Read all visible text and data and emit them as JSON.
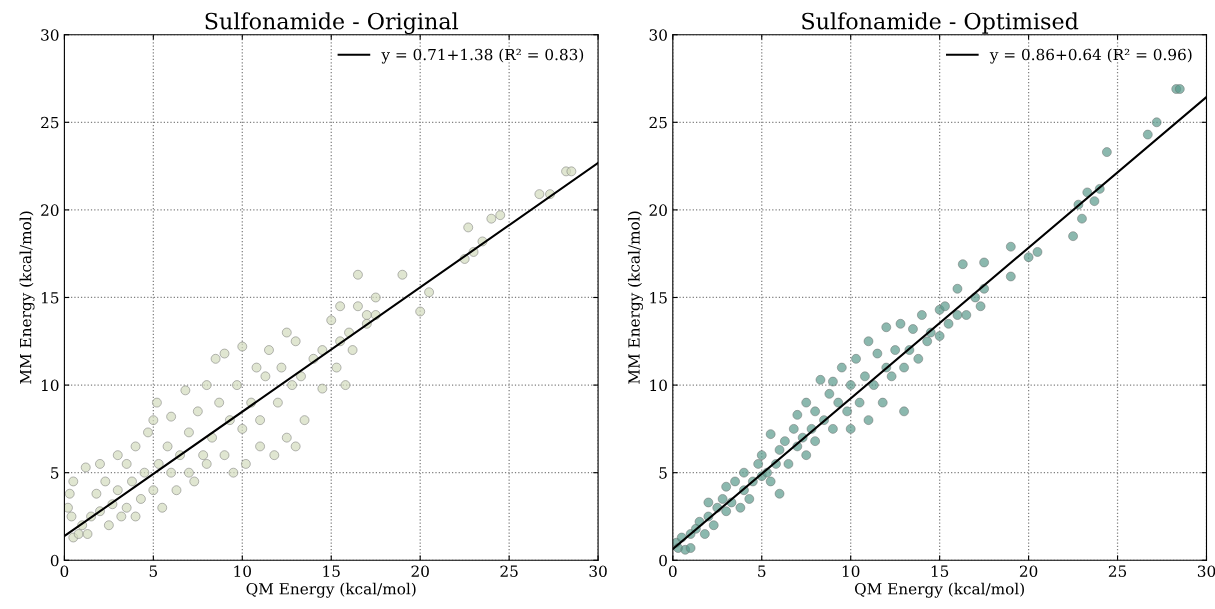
{
  "chart_data": [
    {
      "type": "scatter",
      "title": "Sulfonamide - Original",
      "xlabel": "QM Energy (kcal/mol)",
      "ylabel": "MM Energy (kcal/mol)",
      "xlim": [
        0,
        30
      ],
      "ylim": [
        0,
        30
      ],
      "xticks": [
        0,
        5,
        10,
        15,
        20,
        25,
        30
      ],
      "yticks": [
        0,
        5,
        10,
        15,
        20,
        25,
        30
      ],
      "grid": true,
      "legend": "top right",
      "series": [
        {
          "color": "#d3dbbd",
          "marker": "circle",
          "x": [
            0.2,
            0.3,
            0.5,
            0.4,
            0.5,
            0.8,
            1,
            1.2,
            1.5,
            1.3,
            1.8,
            2,
            2,
            2.3,
            2.5,
            2.7,
            3,
            3,
            3.2,
            3.5,
            3.5,
            3.8,
            4,
            4,
            4.3,
            4.5,
            4.7,
            5,
            5,
            5.2,
            5.3,
            5.5,
            5.8,
            6,
            6,
            6.3,
            6.5,
            6.8,
            7,
            7,
            7.3,
            7.5,
            7.8,
            8,
            8,
            8.3,
            8.5,
            8.7,
            9,
            9,
            9.3,
            9.5,
            9.7,
            10,
            10,
            10.2,
            10.5,
            10.8,
            11,
            11,
            11.3,
            11.5,
            11.8,
            12,
            12.2,
            12.5,
            12.5,
            12.8,
            13,
            13,
            13.3,
            13.5,
            14,
            14.5,
            14.5,
            15,
            15.3,
            15.5,
            15.5,
            15.8,
            16,
            16.2,
            16.5,
            16.5,
            17,
            17,
            17.5,
            17.5,
            19,
            20,
            20.5,
            22.5,
            22.7,
            23,
            23.5,
            24,
            24.5,
            26.7,
            27.3,
            28.2,
            28.5
          ],
          "values": [
            3.0,
            3.8,
            4.5,
            2.5,
            1.3,
            1.5,
            2,
            5.3,
            2.5,
            1.5,
            3.8,
            2.8,
            5.5,
            4.5,
            2,
            3.2,
            6,
            4,
            2.5,
            5.5,
            3,
            4.5,
            2.5,
            6.5,
            3.5,
            5,
            7.3,
            8,
            4,
            9,
            5.5,
            3,
            6.5,
            5,
            8.2,
            4,
            6,
            9.7,
            7.3,
            5,
            4.5,
            8.5,
            6,
            10,
            5.5,
            7,
            11.5,
            9,
            6,
            11.8,
            8,
            5,
            10,
            12.2,
            7.5,
            5.5,
            9,
            11,
            8,
            6.5,
            10.5,
            12,
            6,
            9,
            11,
            13,
            7,
            10,
            6.5,
            12.5,
            10.5,
            8,
            11.5,
            9.8,
            12,
            13.7,
            11,
            12.5,
            14.5,
            10,
            13,
            12,
            14.5,
            16.3,
            14,
            13.5,
            15,
            14,
            16.3,
            14.2,
            15.3,
            17.2,
            19,
            17.6,
            18.2,
            19.5,
            19.7,
            20.9,
            20.9,
            22.2,
            22.2
          ]
        },
        {
          "type": "line",
          "name": "y = 0.71+1.38 (R² = 0.83)",
          "color": "#000000",
          "line_style": "solid",
          "marker": "none",
          "x": [
            0,
            30
          ],
          "values": [
            1.38,
            22.68
          ]
        }
      ]
    },
    {
      "type": "scatter",
      "title": "Sulfonamide - Optimised",
      "xlabel": "QM Energy (kcal/mol)",
      "ylabel": "MM Energy (kcal/mol)",
      "xlim": [
        0,
        30
      ],
      "ylim": [
        0,
        30
      ],
      "xticks": [
        0,
        5,
        10,
        15,
        20,
        25,
        30
      ],
      "yticks": [
        0,
        5,
        10,
        15,
        20,
        25,
        30
      ],
      "grid": true,
      "legend": "top right",
      "series": [
        {
          "color": "#5a9a8c",
          "marker": "circle",
          "x": [
            0.2,
            0.3,
            0.5,
            0.7,
            1,
            1,
            1.3,
            1.5,
            1.8,
            2,
            2,
            2.3,
            2.5,
            2.8,
            3,
            3,
            3.3,
            3.5,
            3.8,
            4,
            4,
            4.3,
            4.5,
            4.8,
            5,
            5,
            5.3,
            5.5,
            5.5,
            5.8,
            6,
            6,
            6.3,
            6.5,
            6.8,
            7,
            7,
            7.3,
            7.5,
            7.5,
            7.8,
            8,
            8,
            8.3,
            8.5,
            8.8,
            9,
            9,
            9.3,
            9.5,
            9.8,
            10,
            10,
            10.3,
            10.5,
            10.8,
            11,
            11,
            11.3,
            11.5,
            11.8,
            12,
            12,
            12.3,
            12.5,
            12.8,
            13,
            13,
            13.3,
            13.5,
            13.8,
            14,
            14.3,
            14.5,
            15,
            15,
            15.3,
            15.5,
            16,
            16,
            16.3,
            16.5,
            17,
            17.3,
            17.5,
            17.5,
            19,
            19,
            20,
            20.5,
            22.5,
            22.8,
            23,
            23.3,
            23.7,
            24,
            24.4,
            26.7,
            27.2,
            28.3,
            28.5
          ],
          "values": [
            1.0,
            0.7,
            1.3,
            0.6,
            0.7,
            1.5,
            1.8,
            2.2,
            1.5,
            2.5,
            3.3,
            2.0,
            3.0,
            3.5,
            2.8,
            4.2,
            3.3,
            4.5,
            3.0,
            4,
            5,
            3.5,
            4.5,
            5.5,
            4.8,
            6,
            5,
            7.2,
            4.5,
            5.5,
            6.3,
            3.8,
            6.8,
            5.5,
            7.5,
            6.5,
            8.3,
            7,
            6,
            9,
            7.5,
            8.5,
            6.8,
            10.3,
            8,
            9.5,
            7.5,
            10.2,
            9,
            11,
            8.5,
            10,
            7.5,
            11.5,
            9,
            10.5,
            12.5,
            8,
            10,
            11.8,
            9,
            13.3,
            11,
            10.5,
            12,
            13.5,
            11,
            8.5,
            12,
            13.2,
            11.5,
            14,
            12.5,
            13,
            14.3,
            12.8,
            14.5,
            13.5,
            15.5,
            14,
            16.9,
            14,
            15,
            14.5,
            17,
            15.5,
            17.9,
            16.2,
            17.3,
            17.6,
            18.5,
            20.3,
            19.5,
            21,
            20.5,
            21.2,
            23.3,
            24.3,
            25,
            26.9,
            26.9
          ]
        },
        {
          "type": "line",
          "name": "y = 0.86+0.64 (R² = 0.96)",
          "color": "#000000",
          "line_style": "solid",
          "marker": "none",
          "x": [
            0,
            30
          ],
          "values": [
            0.64,
            26.44
          ]
        }
      ]
    }
  ]
}
